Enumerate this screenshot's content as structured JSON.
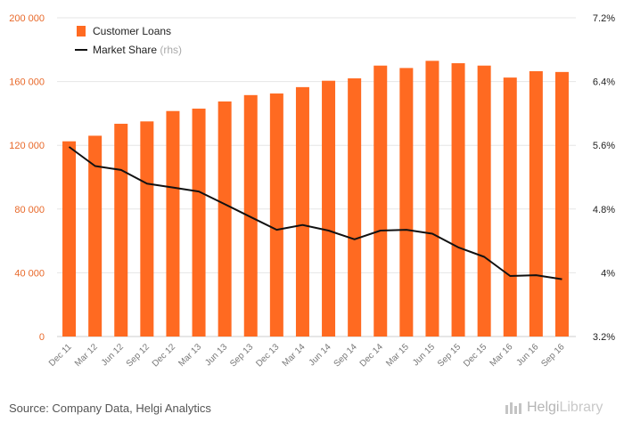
{
  "chart_data": {
    "type": "bar",
    "categories": [
      "Dec 11",
      "Mar 12",
      "Jun 12",
      "Sep 12",
      "Dec 12",
      "Mar 13",
      "Jun 13",
      "Sep 13",
      "Dec 13",
      "Mar 14",
      "Jun 14",
      "Sep 14",
      "Dec 14",
      "Mar 15",
      "Jun 15",
      "Sep 15",
      "Dec 15",
      "Mar 16",
      "Jun 16",
      "Sep 16"
    ],
    "series": [
      {
        "name": "Customer Loans",
        "type": "bar",
        "axis": "left",
        "color": "#ff6a21",
        "values": [
          122500,
          126000,
          133500,
          135000,
          141500,
          143000,
          147500,
          151500,
          152500,
          156500,
          160500,
          162000,
          170000,
          168500,
          173000,
          171500,
          170000,
          162500,
          166500,
          166000
        ]
      },
      {
        "name": "Market Share",
        "name_suffix": "(rhs)",
        "type": "line",
        "axis": "right",
        "color": "#111111",
        "values": [
          5.58,
          5.34,
          5.29,
          5.12,
          5.07,
          5.02,
          4.86,
          4.7,
          4.54,
          4.6,
          4.53,
          4.42,
          4.53,
          4.54,
          4.49,
          4.32,
          4.2,
          3.96,
          3.97,
          3.92
        ]
      }
    ],
    "yleft": {
      "min": 0,
      "max": 200000,
      "ticks": [
        "0",
        "40 000",
        "80 000",
        "120 000",
        "160 000",
        "200 000"
      ]
    },
    "yright": {
      "min": 3.2,
      "max": 7.2,
      "ticks": [
        "3.2%",
        "4%",
        "4.8%",
        "5.6%",
        "6.4%",
        "7.2%"
      ]
    },
    "grid": true,
    "legend": "top-left"
  },
  "footer": {
    "source": "Source: Company Data, Helgi Analytics",
    "logo_main": "Helgi",
    "logo_sub": "Library"
  }
}
